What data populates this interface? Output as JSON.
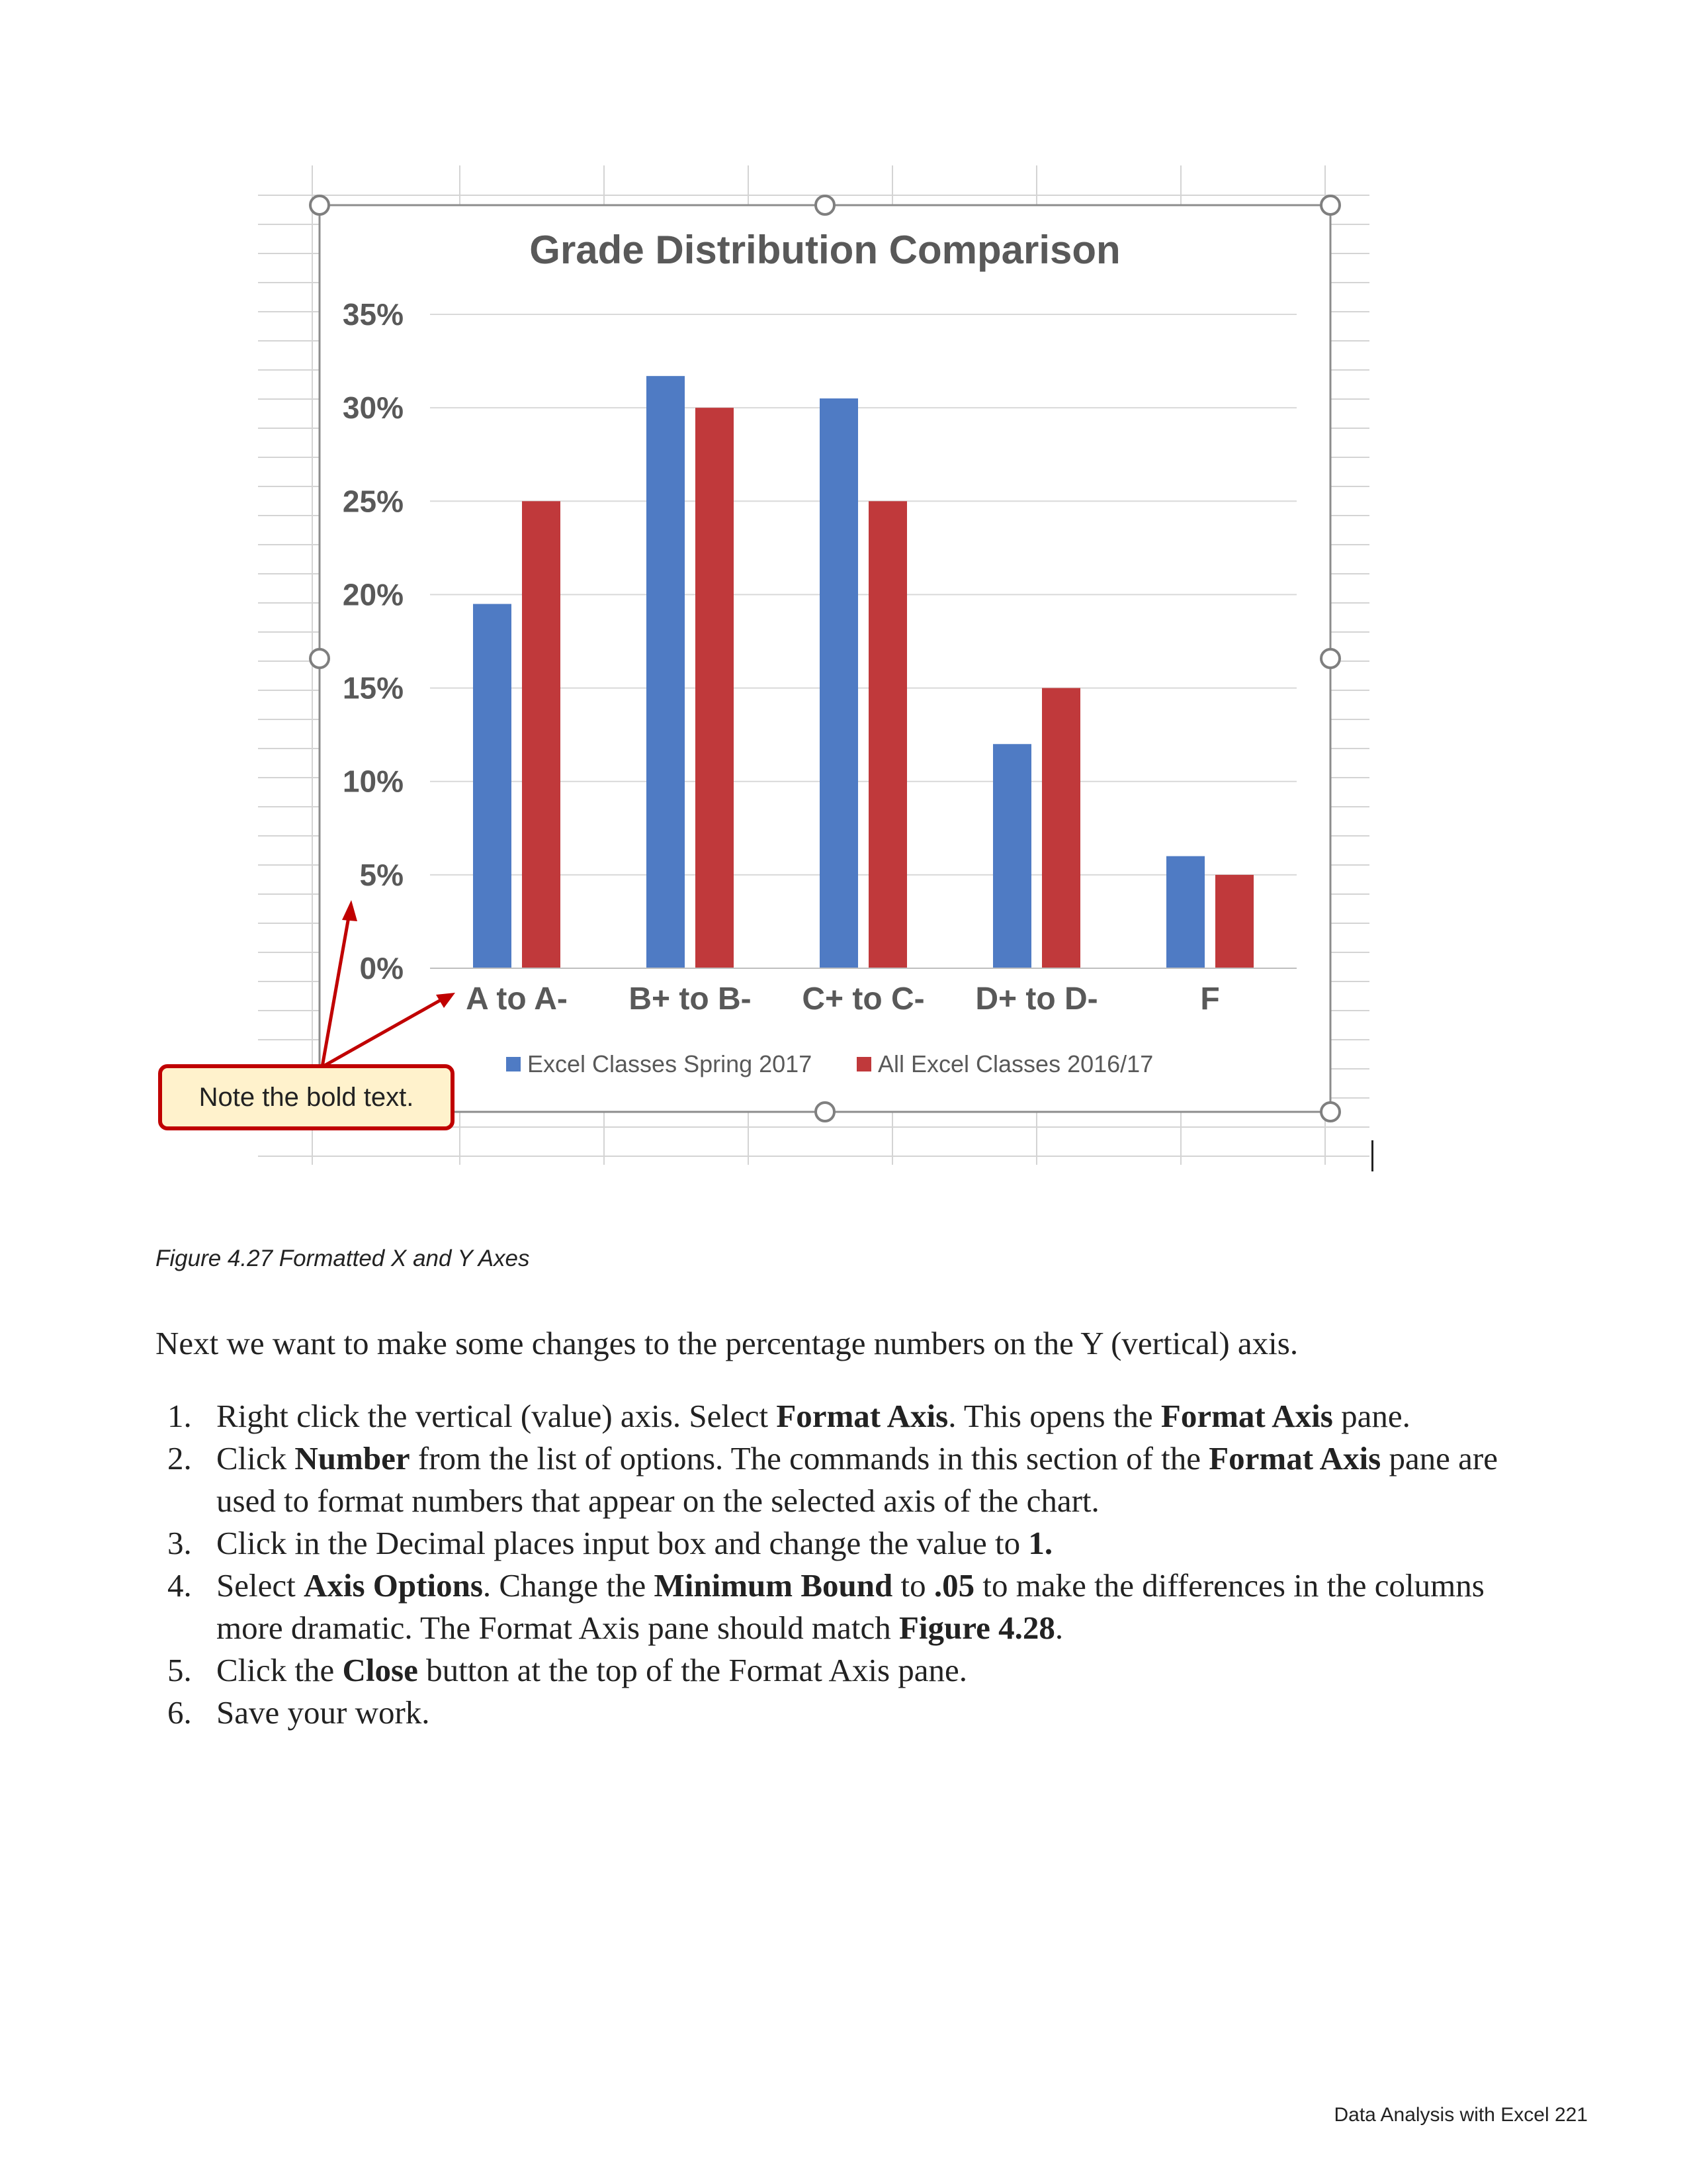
{
  "callout": {
    "text": "Note the bold text."
  },
  "chart_data": {
    "type": "bar",
    "title": "Grade Distribution Comparison",
    "categories": [
      "A to A-",
      "B+ to B-",
      "C+ to C-",
      "D+ to D-",
      "F"
    ],
    "series": [
      {
        "name": "Excel Classes Spring 2017",
        "color": "#4f7bc4",
        "values": [
          0.195,
          0.317,
          0.305,
          0.12,
          0.06
        ]
      },
      {
        "name": "All Excel Classes 2016/17",
        "color": "#c0393b",
        "values": [
          0.25,
          0.3,
          0.25,
          0.15,
          0.05
        ]
      }
    ],
    "y_ticks": [
      "0%",
      "5%",
      "10%",
      "15%",
      "20%",
      "25%",
      "30%",
      "35%"
    ],
    "ylim": [
      0,
      0.35
    ],
    "grid": true,
    "legend": "bottom"
  },
  "caption": "Figure 4.27 Formatted X and Y Axes",
  "intro": "Next we want to make some changes to the percentage numbers on the Y (vertical) axis.",
  "steps": [
    {
      "num": "1.",
      "segments": [
        {
          "t": "Right click the vertical (value) axis. Select "
        },
        {
          "t": "Format Axis",
          "b": true
        },
        {
          "t": ". This opens the "
        },
        {
          "t": "Format Axis",
          "b": true
        },
        {
          "t": " pane."
        }
      ]
    },
    {
      "num": "2.",
      "segments": [
        {
          "t": "Click "
        },
        {
          "t": "Number",
          "b": true
        },
        {
          "t": " from the list of options. The commands in this section of the "
        },
        {
          "t": "Format Axis",
          "b": true
        },
        {
          "t": " pane are used to format numbers that appear on the selected axis of the chart."
        }
      ]
    },
    {
      "num": "3.",
      "segments": [
        {
          "t": "Click in the Decimal places input box and change the value to "
        },
        {
          "t": "1.",
          "b": true
        }
      ]
    },
    {
      "num": "4.",
      "segments": [
        {
          "t": "Select "
        },
        {
          "t": "Axis Options",
          "b": true
        },
        {
          "t": ". Change the "
        },
        {
          "t": "Minimum Bound",
          "b": true
        },
        {
          "t": " to "
        },
        {
          "t": ".05",
          "b": true
        },
        {
          "t": " to make the differences in the columns more dramatic. The Format Axis pane should match "
        },
        {
          "t": "Figure 4.28",
          "b": true
        },
        {
          "t": "."
        }
      ]
    },
    {
      "num": "5.",
      "segments": [
        {
          "t": "Click the "
        },
        {
          "t": "Close",
          "b": true
        },
        {
          "t": " button at the top of the Format Axis pane."
        }
      ]
    },
    {
      "num": "6.",
      "segments": [
        {
          "t": "Save your work."
        }
      ]
    }
  ],
  "footer": "Data Analysis with Excel 221"
}
